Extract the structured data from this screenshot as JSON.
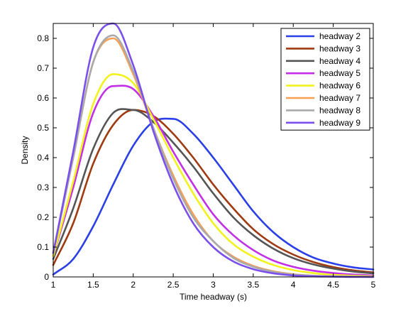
{
  "chart_data": {
    "type": "line",
    "title": "",
    "xlabel": "Time headway (s)",
    "ylabel": "Density",
    "xlim": [
      1,
      5
    ],
    "ylim": [
      0,
      0.85
    ],
    "xticks": [
      "1",
      "1.5",
      "2",
      "2.5",
      "3",
      "3.5",
      "4",
      "4.5",
      "5"
    ],
    "yticks": [
      "0",
      "0.1",
      "0.2",
      "0.3",
      "0.4",
      "0.5",
      "0.6",
      "0.7",
      "0.8"
    ],
    "grid": false,
    "legend_position": "top-right",
    "x": [
      1.0,
      1.25,
      1.5,
      1.75,
      2.0,
      2.25,
      2.5,
      2.75,
      3.0,
      3.25,
      3.5,
      3.75,
      4.0,
      4.25,
      4.5,
      4.75,
      5.0
    ],
    "series": [
      {
        "name": "headway 2",
        "color": "#2a3fe8",
        "values": [
          0.008,
          0.06,
          0.17,
          0.31,
          0.44,
          0.52,
          0.53,
          0.48,
          0.4,
          0.31,
          0.22,
          0.15,
          0.1,
          0.065,
          0.045,
          0.032,
          0.025
        ]
      },
      {
        "name": "headway 3",
        "color": "#a03a10",
        "values": [
          0.04,
          0.18,
          0.38,
          0.51,
          0.56,
          0.54,
          0.48,
          0.4,
          0.31,
          0.23,
          0.16,
          0.11,
          0.075,
          0.05,
          0.033,
          0.022,
          0.015
        ]
      },
      {
        "name": "headway 4",
        "color": "#555555",
        "values": [
          0.06,
          0.23,
          0.43,
          0.55,
          0.56,
          0.52,
          0.45,
          0.37,
          0.28,
          0.2,
          0.14,
          0.095,
          0.063,
          0.042,
          0.028,
          0.018,
          0.012
        ]
      },
      {
        "name": "headway 5",
        "color": "#c22fe6",
        "values": [
          0.07,
          0.3,
          0.55,
          0.64,
          0.63,
          0.54,
          0.42,
          0.31,
          0.21,
          0.14,
          0.09,
          0.055,
          0.034,
          0.021,
          0.013,
          0.008,
          0.005
        ]
      },
      {
        "name": "headway 6",
        "color": "#f2f21e",
        "values": [
          0.07,
          0.32,
          0.58,
          0.68,
          0.65,
          0.53,
          0.4,
          0.28,
          0.18,
          0.11,
          0.068,
          0.04,
          0.023,
          0.013,
          0.007,
          0.004,
          0.002
        ]
      },
      {
        "name": "headway 7",
        "color": "#f7a055",
        "values": [
          0.08,
          0.4,
          0.72,
          0.8,
          0.68,
          0.5,
          0.34,
          0.21,
          0.12,
          0.068,
          0.037,
          0.019,
          0.009,
          0.004,
          0.002,
          0.001,
          0.0
        ]
      },
      {
        "name": "headway 8",
        "color": "#aaaaaa",
        "values": [
          0.08,
          0.4,
          0.72,
          0.81,
          0.69,
          0.5,
          0.33,
          0.2,
          0.12,
          0.064,
          0.034,
          0.017,
          0.008,
          0.004,
          0.002,
          0.001,
          0.0
        ]
      },
      {
        "name": "headway 9",
        "color": "#7a4fee",
        "values": [
          0.08,
          0.42,
          0.77,
          0.85,
          0.71,
          0.49,
          0.31,
          0.18,
          0.1,
          0.052,
          0.026,
          0.012,
          0.005,
          0.002,
          0.001,
          0.0,
          0.0
        ]
      }
    ]
  }
}
